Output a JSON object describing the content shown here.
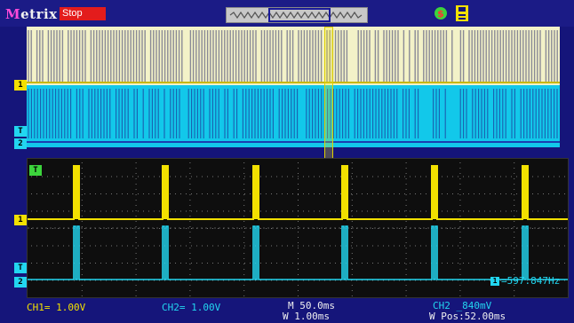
{
  "brand": {
    "prefix": "M",
    "rest": "etrix"
  },
  "status": "Stop",
  "icons": {
    "run": "running-icon",
    "save": "save-disk-icon"
  },
  "colors": {
    "ch1": "#f2e000",
    "ch2": "#22d6f0",
    "background": "#15157a",
    "status": "#e31c1c"
  },
  "markers": {
    "ch1": "1",
    "ch2": "2",
    "trigger": "T"
  },
  "frequency": {
    "tag": "1",
    "value": "=597.847Hz"
  },
  "bottom": {
    "ch1": "CH1= 1.00V",
    "ch2": "CH2= 1.00V",
    "main_time": "M 50.0ms",
    "window_time": "W 1.00ms",
    "trigger": "CH2 ̲840mV",
    "window_pos": "W Pos:52.00ms"
  }
}
